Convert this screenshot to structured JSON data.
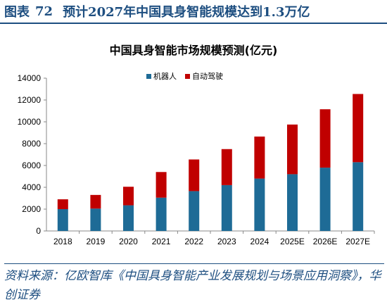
{
  "figure": {
    "label": "图表",
    "number": "72",
    "title": "预计2027年中国具身智能规模达到1.3万亿"
  },
  "source": "资料来源：亿欧智库《中国具身智能产业发展规划与场景应用洞察》，华创证券",
  "colors": {
    "header": "#1d4e80",
    "series1": "#1e6b96",
    "series2": "#c00000",
    "axis": "#888888"
  },
  "chart_data": {
    "type": "bar",
    "stacked": true,
    "title": "中国具身智能市场规模预测(亿元)",
    "categories": [
      "2018",
      "2019",
      "2020",
      "2021",
      "2022",
      "2023",
      "2024",
      "2025E",
      "2026E",
      "2027E"
    ],
    "series": [
      {
        "name": "机器人",
        "values": [
          2000,
          2050,
          2350,
          3050,
          3650,
          4200,
          4800,
          5200,
          5800,
          6300
        ]
      },
      {
        "name": "自动驾驶",
        "values": [
          900,
          1250,
          1700,
          2350,
          2900,
          3300,
          3850,
          4550,
          5350,
          6250
        ]
      }
    ],
    "yticks": [
      0,
      2000,
      4000,
      6000,
      8000,
      10000,
      12000,
      14000
    ],
    "ylim": [
      0,
      14000
    ],
    "grid": false,
    "legend_position": "top-center"
  }
}
